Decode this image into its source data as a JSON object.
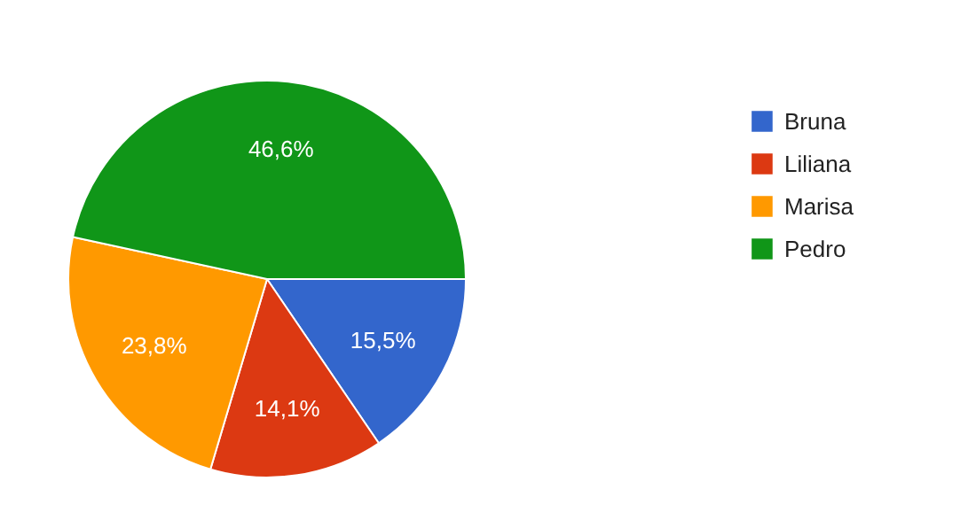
{
  "chart_data": {
    "type": "pie",
    "categories": [
      "Bruna",
      "Liliana",
      "Marisa",
      "Pedro"
    ],
    "values": [
      15.5,
      14.1,
      23.8,
      46.6
    ],
    "colors": [
      "#3366cc",
      "#dc3912",
      "#ff9900",
      "#109618"
    ],
    "value_labels": [
      "15,5%",
      "14,1%",
      "23,8%",
      "46,6%"
    ],
    "legend": "right"
  }
}
